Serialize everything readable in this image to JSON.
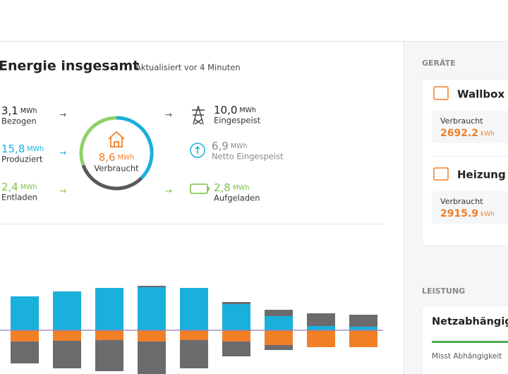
{
  "header": {
    "title": "Energie insgesamt",
    "subtitle": "Aktualisiert vor 4 Minuten"
  },
  "summary": {
    "left": [
      {
        "value": "3,1",
        "unit": "MWh",
        "label": "Bezogen"
      },
      {
        "value": "15,8",
        "unit": "MWh",
        "label": "Produziert"
      },
      {
        "value": "2,4",
        "unit": "MWh",
        "label": "Entladen"
      }
    ],
    "center": {
      "value": "8,6",
      "unit": "MWh",
      "label": "Verbraucht"
    },
    "right": [
      {
        "value": "10,0",
        "unit": "MWh",
        "label": "Eingespeist"
      },
      {
        "value": "6,9",
        "unit": "MWh",
        "label": "Netto Eingespeist"
      },
      {
        "value": "2,8",
        "unit": "MWh",
        "label": "Aufgeladen"
      }
    ]
  },
  "chart_data": {
    "type": "bar",
    "ylim": [
      -62,
      65
    ],
    "series": [
      {
        "color": "#1ab0dc",
        "values": [
          48,
          55,
          60,
          61,
          60,
          37,
          20,
          6,
          5
        ]
      },
      {
        "color": "#6b6b6e",
        "values": [
          0,
          0,
          0,
          2,
          0,
          3,
          9,
          18,
          17
        ]
      },
      {
        "color": "#f07f28",
        "values": [
          -16,
          -15,
          -14,
          -16,
          -14,
          -16,
          -21,
          -24,
          -24
        ]
      },
      {
        "color": "#6b6b6e",
        "values": [
          -31,
          -39,
          -44,
          -46,
          -40,
          -21,
          -7,
          0,
          0
        ]
      }
    ]
  },
  "devices": {
    "heading": "GERÄTE",
    "items": [
      {
        "name": "Wallbox",
        "label": "Verbraucht",
        "value": "2692.2",
        "unit": "kWh"
      },
      {
        "name": "Heizung",
        "label": "Verbraucht",
        "value": "2915.9",
        "unit": "kWh"
      }
    ]
  },
  "power": {
    "heading": "LEISTUNG",
    "title": "Netzabhängigkeit",
    "caption": "Misst Abhängigkeit"
  }
}
